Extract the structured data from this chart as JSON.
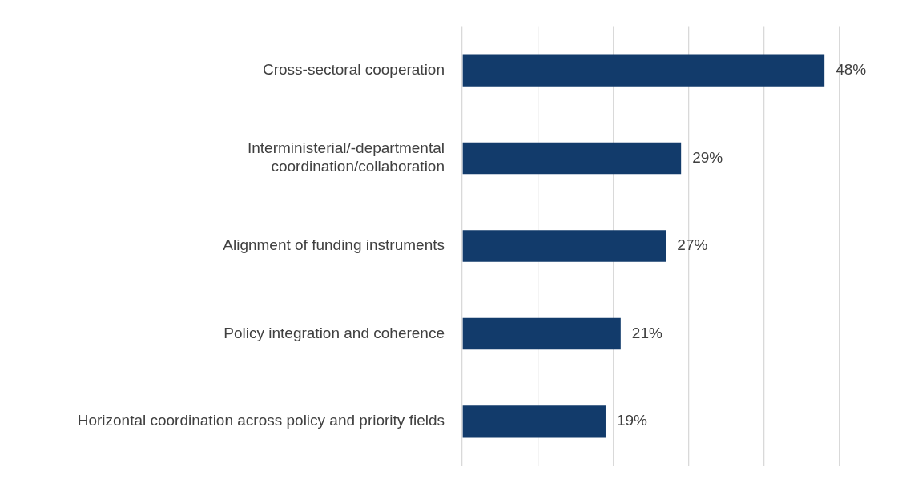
{
  "chart_data": {
    "type": "bar",
    "orientation": "horizontal",
    "categories": [
      "Cross-sectoral cooperation",
      "Interministerial/-departmental\ncoordination/collaboration",
      "Alignment of funding instruments",
      "Policy integration and coherence",
      "Horizontal coordination across policy and priority fields"
    ],
    "values": [
      48,
      29,
      27,
      21,
      19
    ],
    "value_labels": [
      "48%",
      "29%",
      "27%",
      "21%",
      "19%"
    ],
    "color": "#123b6b",
    "xlim": [
      0,
      50
    ],
    "xticks": [
      {
        "value": 0,
        "label": null
      },
      {
        "value": 10,
        "label": null
      },
      {
        "value": 20,
        "label": null
      },
      {
        "value": 30,
        "label": null
      },
      {
        "value": 40,
        "label": null
      },
      {
        "value": 50,
        "label": null
      }
    ],
    "grid": "x",
    "tick_labels": "y",
    "legend": false
  }
}
